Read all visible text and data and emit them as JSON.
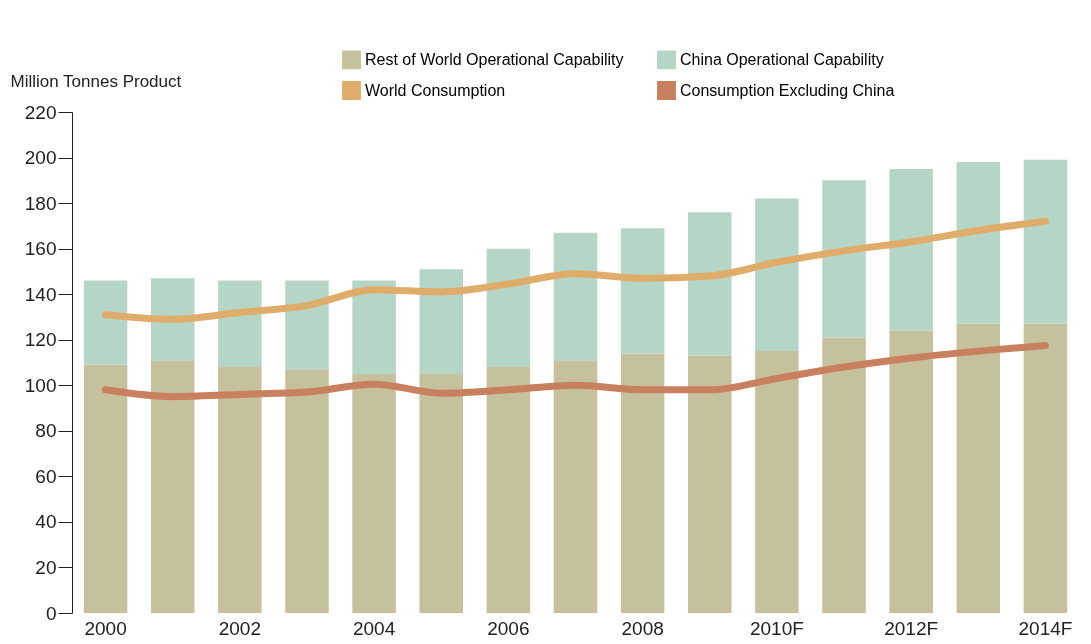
{
  "chart_data": {
    "type": "bar",
    "stacked": true,
    "ylabel": "Million Tonnes Product",
    "categories": [
      "2000",
      null,
      "2002",
      null,
      "2004",
      null,
      "2006",
      null,
      "2008",
      null,
      "2010F",
      null,
      "2012F",
      null,
      "2014F"
    ],
    "series": [
      {
        "name": "Rest of World Operational Capability",
        "color": "#c5c19c",
        "values": [
          109,
          111,
          108,
          107,
          105,
          105,
          108,
          111,
          114,
          113,
          115,
          121,
          124,
          127,
          127
        ]
      },
      {
        "name": "China Operational Capability",
        "color": "#b5d5c6",
        "values": [
          37,
          36,
          38,
          39,
          41,
          46,
          52,
          56,
          55,
          63,
          67,
          69,
          71,
          71,
          72
        ]
      },
      {
        "name": "World Consumption",
        "type": "line",
        "color": "#e0ac6a",
        "values": [
          131,
          129,
          132,
          135,
          142,
          141,
          144.5,
          149,
          147,
          148,
          154,
          159,
          163,
          168,
          172
        ]
      },
      {
        "name": "Consumption Excluding China",
        "type": "line",
        "color": "#c9805f",
        "values": [
          98,
          95,
          96,
          97,
          100.5,
          96.5,
          98,
          100,
          98,
          98,
          103,
          108,
          112,
          115,
          117.5
        ]
      }
    ],
    "ylim": [
      0,
      220
    ],
    "yticks": [
      0,
      20,
      40,
      60,
      80,
      100,
      120,
      140,
      160,
      180,
      200,
      220
    ],
    "grid": false,
    "legend": "top"
  }
}
